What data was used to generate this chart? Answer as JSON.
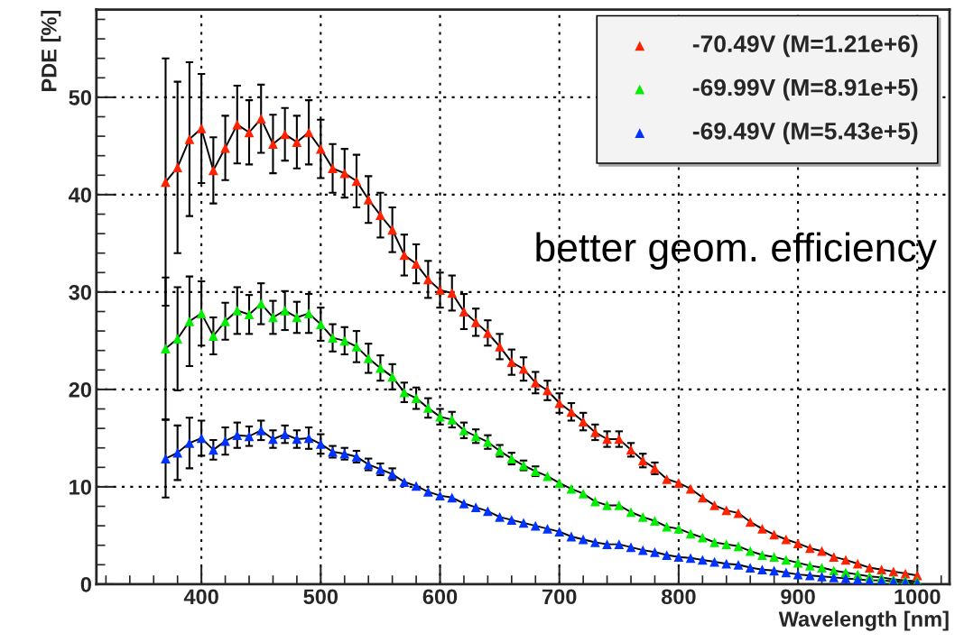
{
  "chart_data": {
    "type": "line",
    "xlabel": "Wavelength [nm]",
    "ylabel": "PDE [%]",
    "x": [
      370,
      380,
      390,
      400,
      410,
      420,
      430,
      440,
      450,
      460,
      470,
      480,
      490,
      500,
      510,
      520,
      530,
      540,
      550,
      560,
      570,
      580,
      590,
      600,
      610,
      620,
      630,
      640,
      650,
      660,
      670,
      680,
      690,
      700,
      710,
      720,
      730,
      740,
      750,
      760,
      770,
      780,
      790,
      800,
      810,
      820,
      830,
      840,
      850,
      860,
      870,
      880,
      890,
      900,
      910,
      920,
      930,
      940,
      950,
      960,
      970,
      980,
      990,
      1000
    ],
    "xlim": [
      312,
      1027
    ],
    "ylim": [
      0,
      59
    ],
    "xticks": [
      400,
      500,
      600,
      700,
      800,
      900,
      1000
    ],
    "yticks": [
      0,
      10,
      20,
      30,
      40,
      50
    ],
    "grid": true,
    "legend": "top right",
    "marker": "triangle",
    "line_style": "solid",
    "annotations": [
      "better geom. efficiency"
    ],
    "series": [
      {
        "name": "-70.49V (M=1.21e+6)",
        "color": "#ff2200",
        "values": [
          41.3,
          42.8,
          45.7,
          46.8,
          42.5,
          44.8,
          47.2,
          46.4,
          47.8,
          45.2,
          46.2,
          45.4,
          46.4,
          44.7,
          42.7,
          42.2,
          41.4,
          39.5,
          37.9,
          36.4,
          33.8,
          32.9,
          31.3,
          30.2,
          29.9,
          28.0,
          26.9,
          25.8,
          24.4,
          22.8,
          22.1,
          20.7,
          19.9,
          18.6,
          17.7,
          16.7,
          15.6,
          14.9,
          14.9,
          13.8,
          12.7,
          11.9,
          10.8,
          10.4,
          9.8,
          8.9,
          8.1,
          7.6,
          7.3,
          6.4,
          5.7,
          5.1,
          4.6,
          4.2,
          3.7,
          3.4,
          2.8,
          2.5,
          2.1,
          1.7,
          1.5,
          1.3,
          1.1,
          0.9
        ],
        "errors": [
          12.7,
          8.8,
          7.9,
          5.6,
          3.4,
          3.3,
          4.0,
          3.3,
          3.5,
          3.0,
          2.7,
          2.7,
          3.3,
          3.0,
          2.5,
          2.5,
          2.7,
          2.4,
          2.3,
          2.3,
          2.1,
          2.0,
          1.9,
          1.8,
          1.8,
          1.8,
          1.4,
          1.3,
          1.3,
          1.3,
          1.2,
          1.1,
          1.0,
          1.0,
          0.9,
          0.9,
          0.8,
          0.8,
          0.8,
          0.7,
          0.7,
          0.6,
          null,
          null,
          null,
          null,
          null,
          null,
          null,
          null,
          null,
          null,
          null,
          null,
          null,
          null,
          null,
          null,
          null,
          null,
          null,
          null,
          null,
          null
        ]
      },
      {
        "name": "-69.99V (M=8.91e+5)",
        "color": "#00ee00",
        "values": [
          24.2,
          25.2,
          27.0,
          27.8,
          25.5,
          27.0,
          28.1,
          27.7,
          28.8,
          27.4,
          28.1,
          27.4,
          27.8,
          26.7,
          25.3,
          25.0,
          24.4,
          23.2,
          22.2,
          21.3,
          19.7,
          19.1,
          18.1,
          17.2,
          16.9,
          15.8,
          15.2,
          14.6,
          13.7,
          12.9,
          12.2,
          11.6,
          11.1,
          10.4,
          9.8,
          9.3,
          8.5,
          8.1,
          8.1,
          7.4,
          6.9,
          6.5,
          5.9,
          5.7,
          5.2,
          4.8,
          4.3,
          4.1,
          3.9,
          3.4,
          3.0,
          2.8,
          2.5,
          2.2,
          1.9,
          1.7,
          1.4,
          1.2,
          1.0,
          0.8,
          0.7,
          0.5,
          0.4,
          0.3
        ],
        "errors": [
          7.3,
          5.3,
          4.6,
          3.3,
          1.9,
          1.9,
          2.4,
          2.0,
          2.1,
          1.7,
          2.0,
          1.6,
          2.0,
          1.7,
          1.4,
          1.4,
          1.6,
          1.5,
          1.3,
          1.3,
          1.0,
          1.1,
          1.0,
          0.8,
          0.8,
          0.8,
          0.7,
          0.7,
          0.6,
          0.6,
          0.5,
          0.5,
          null,
          null,
          null,
          null,
          null,
          null,
          null,
          null,
          null,
          null,
          null,
          null,
          null,
          null,
          null,
          null,
          null,
          null,
          null,
          null,
          null,
          null,
          null,
          null,
          null,
          null,
          null,
          null,
          null,
          null,
          null,
          null
        ]
      },
      {
        "name": "-69.49V (M=5.43e+5)",
        "color": "#0033ff",
        "values": [
          12.9,
          13.5,
          14.5,
          15.0,
          13.8,
          14.7,
          15.3,
          15.2,
          15.8,
          14.9,
          15.4,
          14.9,
          15.0,
          14.4,
          13.6,
          13.4,
          13.1,
          12.3,
          11.8,
          11.3,
          10.5,
          10.1,
          9.5,
          9.1,
          8.9,
          8.3,
          7.9,
          7.5,
          6.9,
          6.6,
          6.3,
          6.0,
          5.7,
          5.4,
          4.9,
          4.6,
          4.3,
          4.1,
          4.1,
          3.8,
          3.5,
          3.3,
          3.0,
          2.8,
          2.7,
          2.5,
          2.3,
          2.1,
          2.0,
          1.7,
          1.5,
          1.4,
          1.2,
          1.0,
          0.9,
          0.8,
          0.7,
          0.6,
          0.5,
          0.4,
          0.4,
          0.3,
          0.2,
          0.1
        ],
        "errors": [
          4.0,
          2.8,
          2.6,
          1.8,
          1.0,
          1.4,
          1.3,
          1.0,
          1.0,
          0.9,
          0.9,
          0.9,
          1.1,
          1.0,
          0.6,
          0.6,
          0.6,
          0.6,
          0.6,
          0.6,
          null,
          null,
          null,
          null,
          null,
          null,
          null,
          null,
          null,
          null,
          null,
          null,
          null,
          null,
          null,
          null,
          null,
          null,
          null,
          null,
          null,
          null,
          null,
          null,
          null,
          null,
          null,
          null,
          null,
          null,
          null,
          null,
          null,
          null,
          null,
          null,
          null,
          null,
          null,
          null,
          null,
          null,
          null,
          null
        ]
      }
    ]
  }
}
